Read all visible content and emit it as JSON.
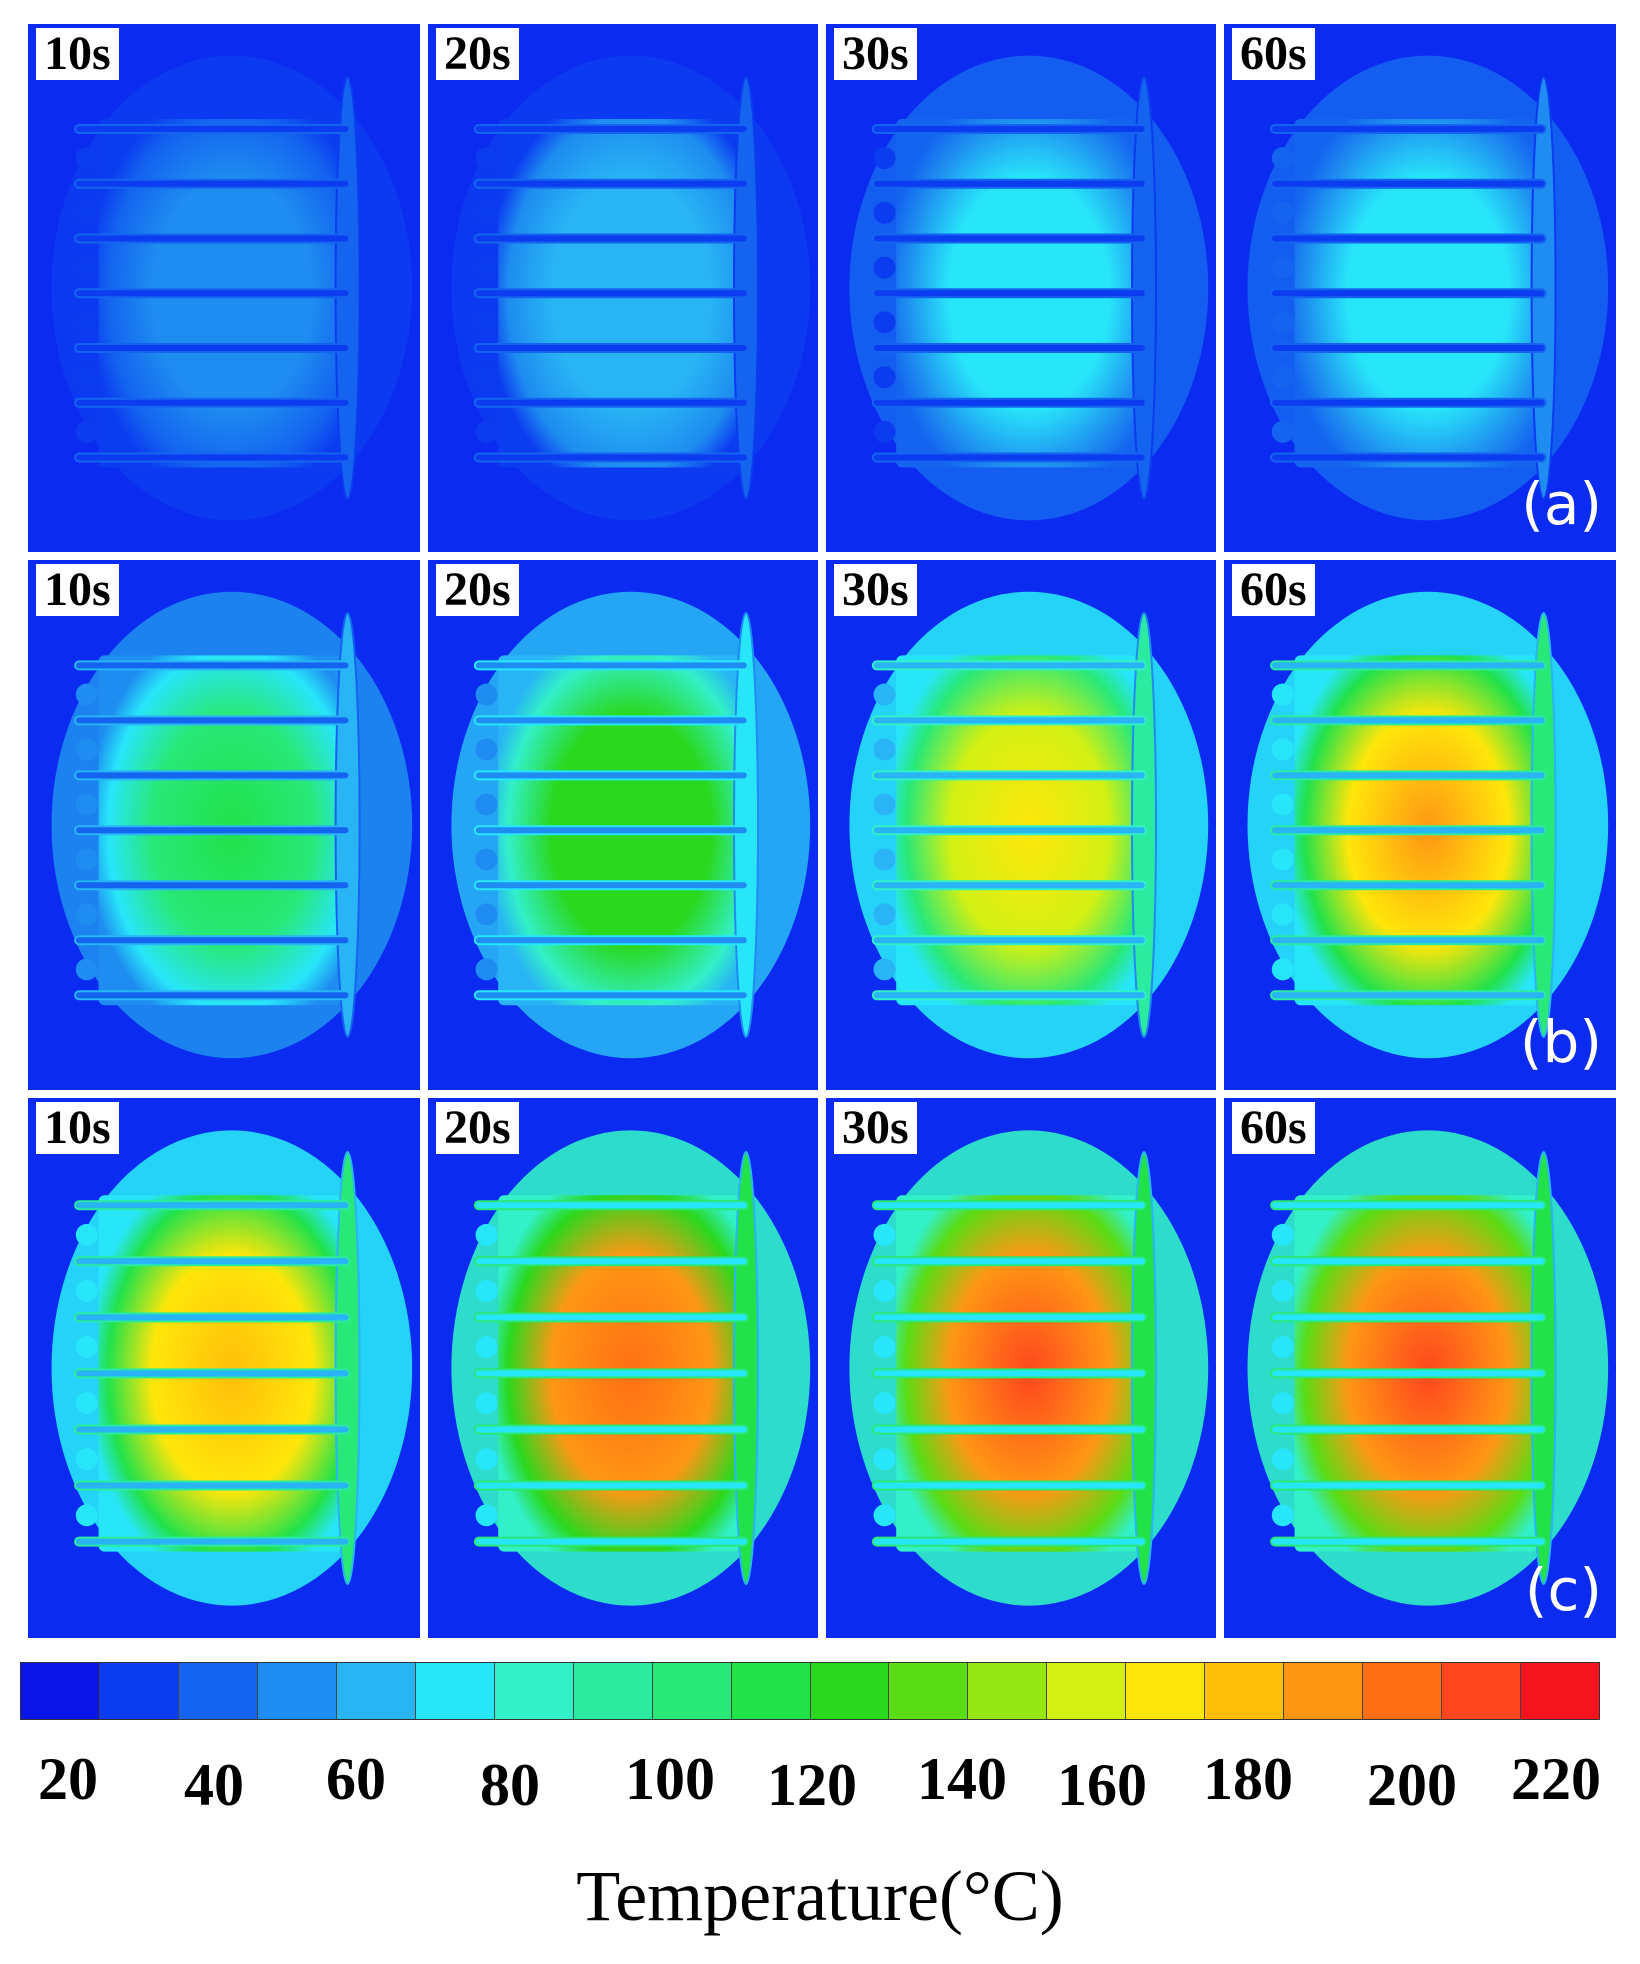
{
  "rows": [
    {
      "label": "(a)",
      "panels": [
        {
          "time": "10s",
          "level": 0.18
        },
        {
          "time": "20s",
          "level": 0.22
        },
        {
          "time": "30s",
          "level": 0.26
        },
        {
          "time": "60s",
          "level": 0.28
        }
      ]
    },
    {
      "label": "(b)",
      "panels": [
        {
          "time": "10s",
          "level": 0.45
        },
        {
          "time": "20s",
          "level": 0.55
        },
        {
          "time": "30s",
          "level": 0.72
        },
        {
          "time": "60s",
          "level": 0.82
        }
      ]
    },
    {
      "label": "(c)",
      "panels": [
        {
          "time": "10s",
          "level": 0.8
        },
        {
          "time": "20s",
          "level": 0.92
        },
        {
          "time": "30s",
          "level": 0.93
        },
        {
          "time": "60s",
          "level": 0.94
        }
      ]
    }
  ],
  "colorbar": {
    "colors": [
      "#0a14e6",
      "#0b3cf0",
      "#1464f0",
      "#1e8cf0",
      "#28b4f5",
      "#28e6fa",
      "#32f0c8",
      "#2aeba0",
      "#28e878",
      "#22e24a",
      "#2ad81e",
      "#5adc14",
      "#96e614",
      "#d2f014",
      "#ffe60a",
      "#ffbe0a",
      "#ff9614",
      "#ff6e14",
      "#ff461e",
      "#f5141e"
    ],
    "ticks": [
      "20",
      "40",
      "60",
      "80",
      "100",
      "120",
      "140",
      "160",
      "180",
      "200",
      "220"
    ],
    "title": "Temperature(°C)"
  }
}
